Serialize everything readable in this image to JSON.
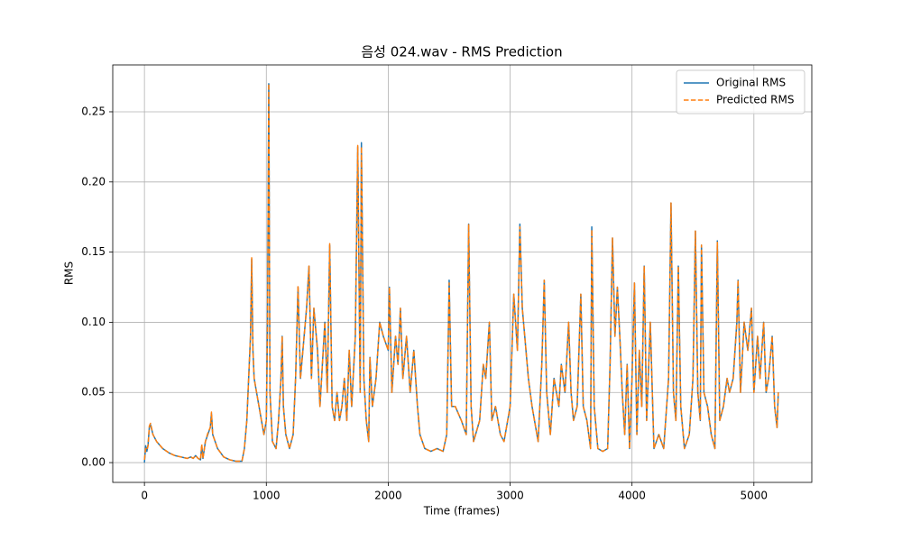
{
  "chart_data": {
    "type": "line",
    "title": "음성 024.wav - RMS Prediction",
    "x_label": "Time (frames)",
    "y_label": "RMS",
    "xlim": [
      -260,
      5475
    ],
    "ylim": [
      -0.0141,
      0.2834
    ],
    "xticks": [
      0,
      1000,
      2000,
      3000,
      4000,
      5000
    ],
    "yticks": [
      {
        "value": 0,
        "label": "0.00"
      },
      {
        "value": 0.05,
        "label": "0.05"
      },
      {
        "value": 0.1,
        "label": "0.10"
      },
      {
        "value": 0.15,
        "label": "0.15"
      },
      {
        "value": 0.2,
        "label": "0.20"
      },
      {
        "value": 0.25,
        "label": "0.25"
      }
    ],
    "grid": true,
    "legend": "upper right",
    "x": [
      0,
      10,
      20,
      30,
      40,
      50,
      70,
      100,
      150,
      200,
      250,
      300,
      350,
      380,
      400,
      420,
      440,
      460,
      470,
      480,
      500,
      520,
      540,
      550,
      560,
      600,
      650,
      700,
      750,
      800,
      820,
      840,
      860,
      870,
      880,
      890,
      900,
      920,
      940,
      960,
      980,
      1000,
      1010,
      1020,
      1030,
      1050,
      1080,
      1100,
      1120,
      1130,
      1140,
      1160,
      1190,
      1220,
      1240,
      1260,
      1280,
      1300,
      1330,
      1350,
      1370,
      1390,
      1420,
      1440,
      1460,
      1480,
      1500,
      1520,
      1540,
      1560,
      1580,
      1600,
      1620,
      1640,
      1660,
      1680,
      1700,
      1730,
      1750,
      1770,
      1780,
      1800,
      1820,
      1840,
      1850,
      1870,
      1900,
      1930,
      1960,
      2000,
      2010,
      2030,
      2060,
      2080,
      2100,
      2120,
      2150,
      2180,
      2210,
      2240,
      2260,
      2300,
      2350,
      2400,
      2450,
      2480,
      2500,
      2520,
      2550,
      2600,
      2640,
      2660,
      2680,
      2700,
      2750,
      2780,
      2800,
      2830,
      2850,
      2880,
      2920,
      2950,
      3000,
      3030,
      3060,
      3080,
      3100,
      3120,
      3150,
      3180,
      3200,
      3230,
      3260,
      3280,
      3300,
      3330,
      3360,
      3400,
      3420,
      3450,
      3480,
      3500,
      3520,
      3550,
      3580,
      3600,
      3630,
      3660,
      3670,
      3690,
      3720,
      3760,
      3800,
      3820,
      3840,
      3860,
      3880,
      3900,
      3920,
      3940,
      3960,
      3980,
      4000,
      4020,
      4040,
      4060,
      4080,
      4100,
      4120,
      4150,
      4180,
      4220,
      4260,
      4300,
      4320,
      4340,
      4360,
      4380,
      4400,
      4430,
      4470,
      4500,
      4520,
      4540,
      4560,
      4570,
      4590,
      4620,
      4650,
      4680,
      4700,
      4720,
      4750,
      4780,
      4800,
      4830,
      4860,
      4870,
      4890,
      4920,
      4950,
      4980,
      5000,
      5030,
      5050,
      5080,
      5100,
      5120,
      5150,
      5170,
      5190,
      5200
    ],
    "series": [
      {
        "name": "Original RMS",
        "color": "#1f77b4",
        "dash": false,
        "values": [
          0,
          0.012,
          0.008,
          0.013,
          0.025,
          0.027,
          0.02,
          0.015,
          0.01,
          0.007,
          0.005,
          0.004,
          0.003,
          0.004,
          0.003,
          0.005,
          0.003,
          0.002,
          0.012,
          0.003,
          0.015,
          0.02,
          0.025,
          0.035,
          0.02,
          0.01,
          0.004,
          0.002,
          0.001,
          0.001,
          0.01,
          0.03,
          0.07,
          0.09,
          0.145,
          0.08,
          0.06,
          0.05,
          0.04,
          0.03,
          0.02,
          0.03,
          0.1,
          0.27,
          0.05,
          0.015,
          0.01,
          0.03,
          0.06,
          0.09,
          0.04,
          0.02,
          0.01,
          0.02,
          0.06,
          0.125,
          0.06,
          0.08,
          0.11,
          0.14,
          0.06,
          0.11,
          0.08,
          0.04,
          0.07,
          0.1,
          0.05,
          0.155,
          0.04,
          0.03,
          0.05,
          0.03,
          0.04,
          0.06,
          0.03,
          0.08,
          0.04,
          0.09,
          0.225,
          0.05,
          0.228,
          0.06,
          0.03,
          0.015,
          0.075,
          0.04,
          0.06,
          0.1,
          0.09,
          0.08,
          0.125,
          0.05,
          0.09,
          0.07,
          0.11,
          0.06,
          0.09,
          0.05,
          0.08,
          0.04,
          0.02,
          0.01,
          0.008,
          0.01,
          0.008,
          0.02,
          0.13,
          0.04,
          0.04,
          0.03,
          0.02,
          0.17,
          0.04,
          0.015,
          0.03,
          0.07,
          0.06,
          0.1,
          0.03,
          0.04,
          0.02,
          0.015,
          0.04,
          0.12,
          0.08,
          0.17,
          0.11,
          0.09,
          0.06,
          0.04,
          0.03,
          0.015,
          0.07,
          0.13,
          0.05,
          0.02,
          0.06,
          0.04,
          0.07,
          0.05,
          0.1,
          0.05,
          0.03,
          0.04,
          0.12,
          0.04,
          0.03,
          0.01,
          0.168,
          0.04,
          0.01,
          0.008,
          0.01,
          0.07,
          0.16,
          0.09,
          0.125,
          0.09,
          0.05,
          0.02,
          0.07,
          0.01,
          0.06,
          0.128,
          0.02,
          0.08,
          0.04,
          0.14,
          0.03,
          0.1,
          0.01,
          0.02,
          0.01,
          0.06,
          0.185,
          0.05,
          0.03,
          0.14,
          0.04,
          0.01,
          0.02,
          0.06,
          0.165,
          0.05,
          0.03,
          0.155,
          0.05,
          0.04,
          0.02,
          0.01,
          0.158,
          0.03,
          0.04,
          0.06,
          0.05,
          0.06,
          0.1,
          0.13,
          0.05,
          0.1,
          0.08,
          0.11,
          0.05,
          0.09,
          0.06,
          0.1,
          0.05,
          0.06,
          0.09,
          0.04,
          0.025,
          0.05
        ]
      },
      {
        "name": "Predicted RMS",
        "color": "#ff7f0e",
        "dash": true,
        "values": [
          0.002,
          0.01,
          0.009,
          0.012,
          0.026,
          0.028,
          0.02,
          0.015,
          0.01,
          0.007,
          0.005,
          0.004,
          0.003,
          0.004,
          0.003,
          0.005,
          0.003,
          0.002,
          0.013,
          0.003,
          0.015,
          0.021,
          0.025,
          0.036,
          0.02,
          0.01,
          0.004,
          0.002,
          0.001,
          0.001,
          0.01,
          0.03,
          0.07,
          0.09,
          0.146,
          0.08,
          0.06,
          0.05,
          0.04,
          0.03,
          0.02,
          0.03,
          0.1,
          0.27,
          0.05,
          0.015,
          0.01,
          0.03,
          0.06,
          0.09,
          0.04,
          0.02,
          0.01,
          0.02,
          0.06,
          0.126,
          0.06,
          0.08,
          0.11,
          0.14,
          0.06,
          0.11,
          0.08,
          0.04,
          0.07,
          0.1,
          0.05,
          0.156,
          0.04,
          0.03,
          0.05,
          0.03,
          0.04,
          0.06,
          0.03,
          0.08,
          0.04,
          0.09,
          0.226,
          0.05,
          0.225,
          0.06,
          0.03,
          0.015,
          0.075,
          0.04,
          0.06,
          0.1,
          0.09,
          0.08,
          0.125,
          0.05,
          0.09,
          0.07,
          0.11,
          0.06,
          0.09,
          0.05,
          0.08,
          0.04,
          0.02,
          0.01,
          0.008,
          0.01,
          0.008,
          0.02,
          0.128,
          0.04,
          0.04,
          0.03,
          0.02,
          0.17,
          0.04,
          0.015,
          0.03,
          0.07,
          0.06,
          0.1,
          0.03,
          0.04,
          0.02,
          0.015,
          0.04,
          0.12,
          0.08,
          0.168,
          0.11,
          0.09,
          0.06,
          0.04,
          0.03,
          0.015,
          0.07,
          0.13,
          0.05,
          0.02,
          0.06,
          0.04,
          0.07,
          0.05,
          0.1,
          0.05,
          0.03,
          0.04,
          0.12,
          0.04,
          0.03,
          0.01,
          0.166,
          0.04,
          0.01,
          0.008,
          0.01,
          0.07,
          0.16,
          0.09,
          0.125,
          0.09,
          0.05,
          0.02,
          0.07,
          0.01,
          0.06,
          0.128,
          0.02,
          0.08,
          0.04,
          0.14,
          0.03,
          0.1,
          0.01,
          0.02,
          0.01,
          0.06,
          0.185,
          0.05,
          0.03,
          0.14,
          0.04,
          0.01,
          0.02,
          0.06,
          0.165,
          0.05,
          0.03,
          0.155,
          0.05,
          0.04,
          0.02,
          0.01,
          0.157,
          0.03,
          0.04,
          0.06,
          0.05,
          0.06,
          0.1,
          0.13,
          0.05,
          0.1,
          0.08,
          0.11,
          0.05,
          0.09,
          0.06,
          0.1,
          0.05,
          0.06,
          0.09,
          0.04,
          0.025,
          0.05
        ]
      }
    ]
  }
}
